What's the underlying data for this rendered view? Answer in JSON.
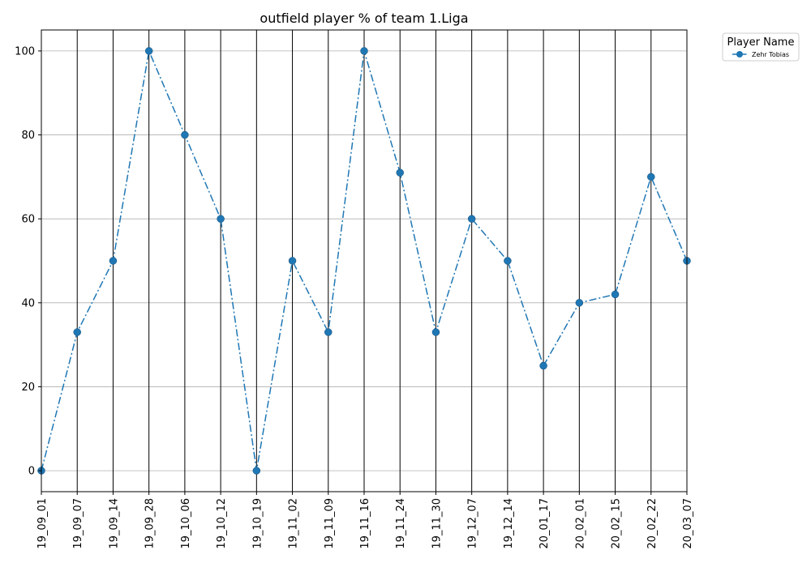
{
  "chart_data": {
    "type": "line",
    "title": "outfield player % of team 1.Liga",
    "xlabel": "",
    "ylabel": "",
    "x": [
      "19_09_01",
      "19_09_07",
      "19_09_14",
      "19_09_28",
      "19_10_06",
      "19_10_12",
      "19_10_19",
      "19_11_02",
      "19_11_09",
      "19_11_16",
      "19_11_24",
      "19_11_30",
      "19_12_07",
      "19_12_14",
      "20_01_17",
      "20_02_01",
      "20_02_15",
      "20_02_22",
      "20_03_07"
    ],
    "series": [
      {
        "name": "Zehr Tobias",
        "values": [
          0,
          33,
          50,
          100,
          80,
          60,
          0,
          50,
          33,
          100,
          71,
          33,
          60,
          50,
          25,
          40,
          42,
          70,
          50
        ],
        "color": "#1f77b4",
        "line_style": "dashdot",
        "marker": "circle"
      }
    ],
    "yticks": [
      0,
      20,
      40,
      60,
      80,
      100
    ],
    "ylim": [
      -5,
      105
    ],
    "grid": "horizontal gray, vertical black",
    "legend": {
      "title": "Player Name",
      "placement": "outside-top-right"
    }
  }
}
